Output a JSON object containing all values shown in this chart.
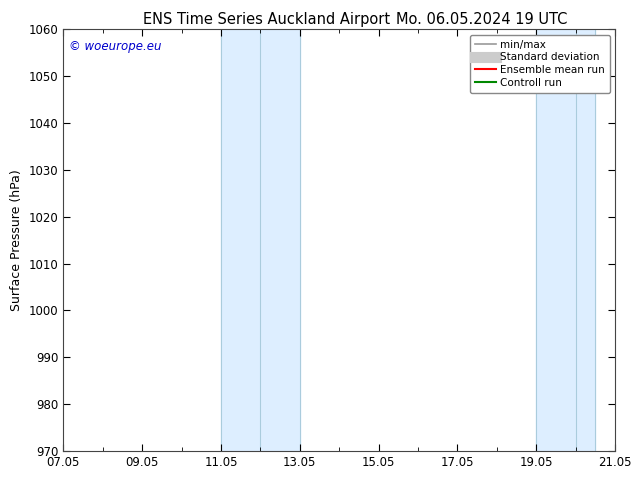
{
  "title_left": "ENS Time Series Auckland Airport",
  "title_right": "Mo. 06.05.2024 19 UTC",
  "ylabel": "Surface Pressure (hPa)",
  "ylim": [
    970,
    1060
  ],
  "yticks": [
    970,
    980,
    990,
    1000,
    1010,
    1020,
    1030,
    1040,
    1050,
    1060
  ],
  "xlim_start": 0,
  "xlim_end": 14,
  "xtick_positions": [
    0,
    2,
    4,
    6,
    8,
    10,
    12,
    14
  ],
  "xtick_labels": [
    "07.05",
    "09.05",
    "11.05",
    "13.05",
    "15.05",
    "17.05",
    "19.05",
    "21.05"
  ],
  "shaded_bands": [
    {
      "xmin": 4.0,
      "xmax": 5.0,
      "edge_left": true,
      "edge_right": false
    },
    {
      "xmin": 5.0,
      "xmax": 6.0,
      "edge_left": true,
      "edge_right": true
    },
    {
      "xmin": 12.0,
      "xmax": 13.0,
      "edge_left": true,
      "edge_right": false
    },
    {
      "xmin": 13.0,
      "xmax": 13.75,
      "edge_left": true,
      "edge_right": true
    }
  ],
  "band_color": "#ddeeff",
  "band_edge_color": "#aaccdd",
  "copyright_text": "© woeurope.eu",
  "copyright_color": "#0000cc",
  "legend_items": [
    {
      "label": "min/max",
      "color": "#999999",
      "lw": 1.2,
      "style": "-"
    },
    {
      "label": "Standard deviation",
      "color": "#cccccc",
      "lw": 8,
      "style": "-"
    },
    {
      "label": "Ensemble mean run",
      "color": "#ff0000",
      "lw": 1.5,
      "style": "-"
    },
    {
      "label": "Controll run",
      "color": "#008800",
      "lw": 1.5,
      "style": "-"
    }
  ],
  "background_color": "#ffffff",
  "title_fontsize": 10.5,
  "tick_fontsize": 8.5,
  "ylabel_fontsize": 9,
  "legend_fontsize": 7.5,
  "copyright_fontsize": 8.5
}
